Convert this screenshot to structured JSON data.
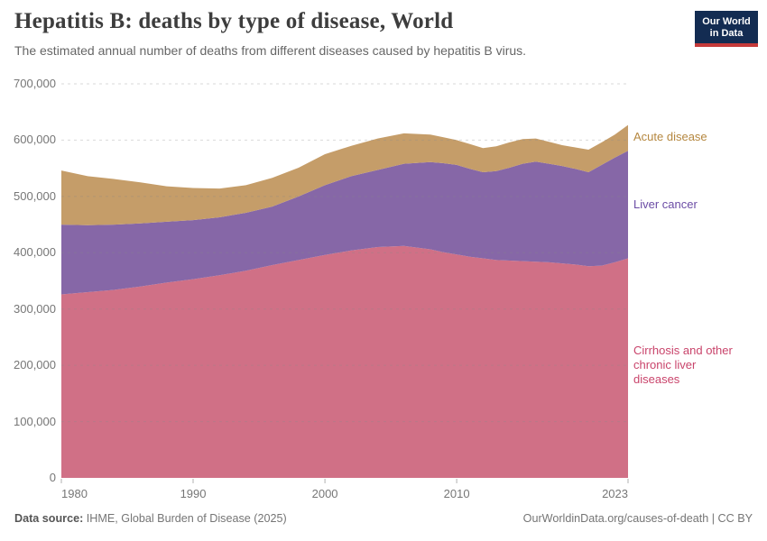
{
  "header": {
    "title": "Hepatitis B: deaths by type of disease, World",
    "subtitle": "The estimated annual number of deaths from different diseases caused by hepatitis B virus.",
    "logo": {
      "line1": "Our World",
      "line2": "in Data",
      "bg_color": "#132c52",
      "accent_color": "#c53a3a"
    }
  },
  "chart_data": {
    "type": "area",
    "stacked": true,
    "title": "Hepatitis B: deaths by type of disease, World",
    "xlabel": "",
    "ylabel": "",
    "xlim": [
      1980,
      2023
    ],
    "ylim": [
      0,
      700000
    ],
    "grid": "horizontal-dashed",
    "legend_position": "right-inline",
    "x": [
      1980,
      1982,
      1984,
      1986,
      1988,
      1990,
      1992,
      1994,
      1996,
      1998,
      2000,
      2002,
      2004,
      2006,
      2008,
      2009,
      2010,
      2011,
      2012,
      2013,
      2014,
      2015,
      2016,
      2017,
      2018,
      2019,
      2020,
      2021,
      2022,
      2023
    ],
    "series": [
      {
        "name": "Cirrhosis and other chronic liver diseases",
        "fill": "#d07086",
        "label_color": "#c9446b",
        "values": [
          326000,
          330000,
          334000,
          340000,
          347000,
          353000,
          360000,
          368000,
          378000,
          387000,
          396000,
          404000,
          410000,
          412000,
          406000,
          401000,
          397000,
          393000,
          390000,
          387000,
          386000,
          385000,
          384000,
          383000,
          381000,
          379000,
          376000,
          377000,
          383000,
          390000
        ]
      },
      {
        "name": "Liver cancer",
        "fill": "#8667a7",
        "label_color": "#6b4ca5",
        "values": [
          124000,
          119000,
          116000,
          112000,
          108000,
          105000,
          103000,
          103000,
          104000,
          113000,
          124000,
          132000,
          137000,
          146000,
          155000,
          158000,
          159000,
          156000,
          153000,
          158000,
          165000,
          173000,
          178000,
          175000,
          173000,
          170000,
          167000,
          179000,
          186000,
          191000
        ]
      },
      {
        "name": "Acute disease",
        "fill": "#c59d69",
        "label_color": "#b5873f",
        "values": [
          96000,
          87000,
          81000,
          73000,
          63000,
          57000,
          51000,
          49000,
          51000,
          51000,
          55000,
          54000,
          56000,
          54000,
          49000,
          46000,
          44000,
          44000,
          43000,
          44000,
          45000,
          44000,
          41000,
          39000,
          37000,
          38000,
          40000,
          40000,
          41000,
          46000
        ]
      }
    ],
    "y_ticks": [
      {
        "value": 0,
        "label": "0"
      },
      {
        "value": 100000,
        "label": "100,000"
      },
      {
        "value": 200000,
        "label": "200,000"
      },
      {
        "value": 300000,
        "label": "300,000"
      },
      {
        "value": 400000,
        "label": "400,000"
      },
      {
        "value": 500000,
        "label": "500,000"
      },
      {
        "value": 600000,
        "label": "600,000"
      },
      {
        "value": 700000,
        "label": "700,000"
      }
    ],
    "x_ticks": [
      {
        "value": 1980,
        "label": "1980"
      },
      {
        "value": 1990,
        "label": "1990"
      },
      {
        "value": 2000,
        "label": "2000"
      },
      {
        "value": 2010,
        "label": "2010"
      },
      {
        "value": 2023,
        "label": "2023"
      }
    ]
  },
  "footer": {
    "source_label": "Data source:",
    "source_value": "IHME, Global Burden of Disease (2025)",
    "credit": "OurWorldinData.org/causes-of-death | CC BY"
  }
}
